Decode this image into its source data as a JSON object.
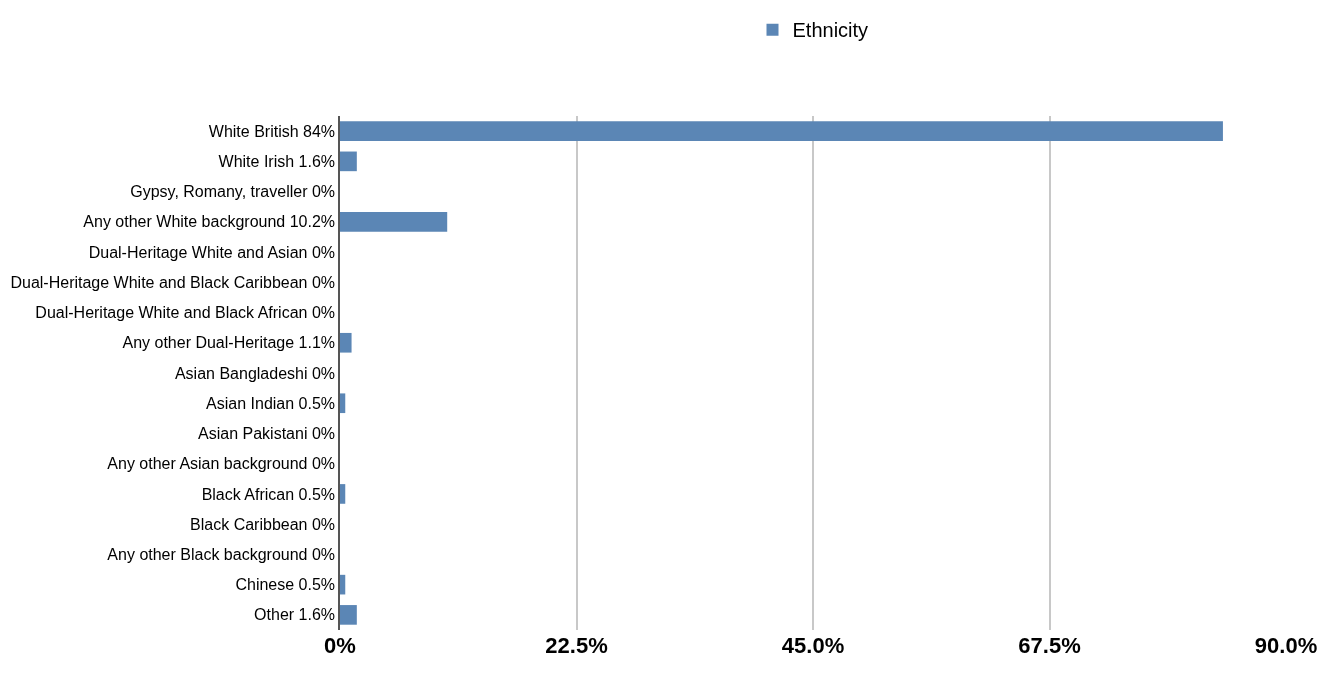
{
  "chart_data": {
    "type": "bar",
    "orientation": "horizontal",
    "categories": [
      "White British 84%",
      "White Irish 1.6%",
      "Gypsy, Romany, traveller 0%",
      "Any other White background 10.2%",
      "Dual-Heritage White and Asian 0%",
      "Dual-Heritage White and Black Caribbean 0%",
      "Dual-Heritage White and Black African 0%",
      "Any other Dual-Heritage 1.1%",
      "Asian Bangladeshi 0%",
      "Asian Indian 0.5%",
      "Asian Pakistani 0%",
      "Any other Asian background 0%",
      "Black African 0.5%",
      "Black Caribbean 0%",
      "Any other Black background 0%",
      "Chinese 0.5%",
      "Other 1.6%"
    ],
    "series": [
      {
        "name": "Ethnicity",
        "color": "#5b86b5",
        "values": [
          84,
          1.6,
          0,
          10.2,
          0,
          0,
          0,
          1.1,
          0,
          0.5,
          0,
          0,
          0.5,
          0,
          0,
          0.5,
          1.6
        ]
      }
    ],
    "xlim": [
      0,
      90
    ],
    "xticks": [
      {
        "value": 0,
        "label": "0%"
      },
      {
        "value": 22.5,
        "label": "22.5%"
      },
      {
        "value": 45,
        "label": "45.0%"
      },
      {
        "value": 67.5,
        "label": "67.5%"
      },
      {
        "value": 90,
        "label": "90.0%"
      }
    ],
    "grid": "x",
    "legend": "top"
  }
}
